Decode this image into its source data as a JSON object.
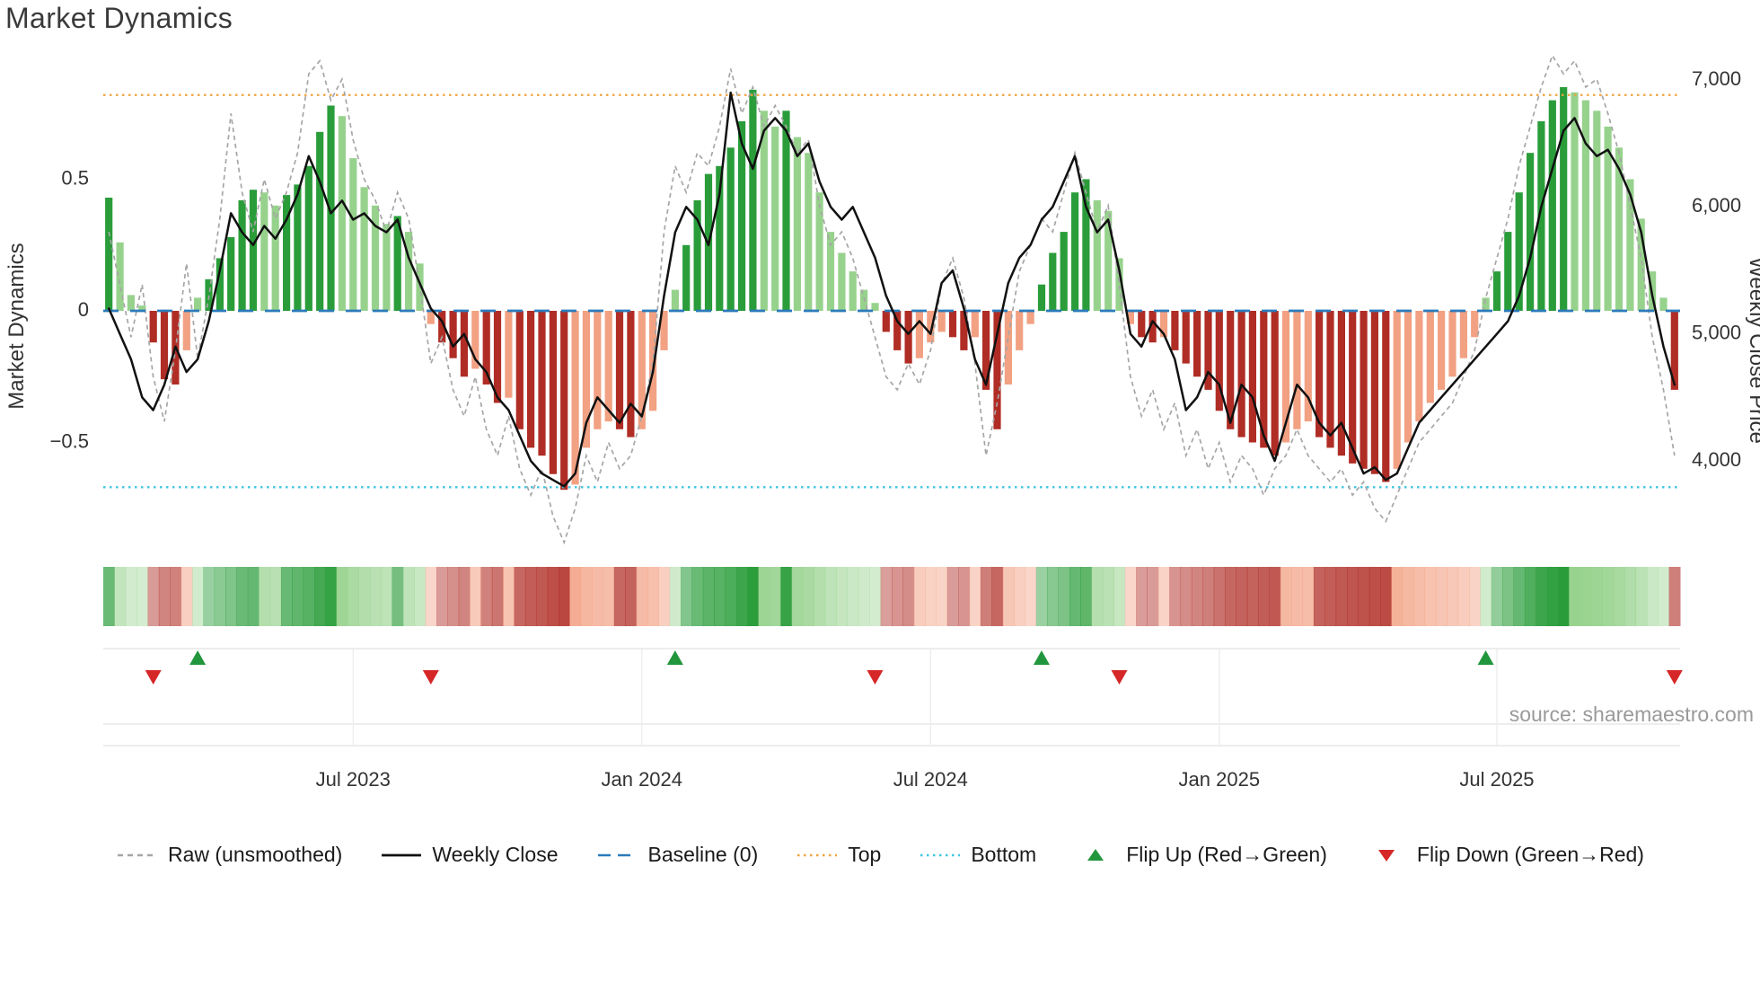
{
  "title": "Market Dynamics",
  "source": "source: sharemaestro.com",
  "axes": {
    "left_label": "Market Dynamics",
    "right_label": "Weekly Close Price",
    "left_tick_labels": [
      "0.5",
      "0",
      "−0.5"
    ],
    "right_tick_labels": [
      "7,000",
      "6,000",
      "5,000",
      "4,000"
    ],
    "x_tick_labels": [
      "Jul 2023",
      "Jan 2024",
      "Jul 2024",
      "Jan 2025",
      "Jul 2025"
    ]
  },
  "colors": {
    "bar_green_dark": "#2a9d3a",
    "bar_green_light": "#97d28d",
    "bar_red_dark": "#b02d25",
    "bar_red_light": "#f2a183",
    "baseline": "#2b7bba",
    "top": "#f0a33f",
    "bottom": "#3fc6e0",
    "raw_line": "#a6a6a6",
    "close_line": "#111111",
    "flip_up": "#22963c",
    "flip_down": "#d62728"
  },
  "legend": {
    "items": [
      {
        "key": "raw",
        "label": "Raw (unsmoothed)",
        "glyph": "dashed-line",
        "color": "#a6a6a6"
      },
      {
        "key": "weekly-close",
        "label": "Weekly Close",
        "glyph": "solid-line",
        "color": "#111111"
      },
      {
        "key": "baseline",
        "label": "Baseline (0)",
        "glyph": "long-dash-line",
        "color": "#2b7bba"
      },
      {
        "key": "top",
        "label": "Top",
        "glyph": "dotted-line",
        "color": "#f0a33f"
      },
      {
        "key": "bottom",
        "label": "Bottom",
        "glyph": "dotted-line",
        "color": "#3fc6e0"
      },
      {
        "key": "flip-up",
        "label": "Flip Up (Red→Green)",
        "glyph": "triangle-up",
        "color": "#22963c"
      },
      {
        "key": "flip-down",
        "label": "Flip Down (Green→Red)",
        "glyph": "triangle-down",
        "color": "#d62728"
      }
    ]
  },
  "chart_data": {
    "type": "bar",
    "title": "Market Dynamics",
    "x_axis": {
      "unit": "week",
      "n_points": 142,
      "tick_labels": [
        "Jul 2023",
        "Jan 2024",
        "Jul 2024",
        "Jan 2025",
        "Jul 2025"
      ],
      "tick_indices": [
        22,
        48,
        74,
        100,
        125
      ]
    },
    "left_axis": {
      "label": "Market Dynamics",
      "range": [
        -0.95,
        0.94
      ],
      "ticks": [
        0.5,
        0,
        -0.5
      ]
    },
    "right_axis": {
      "label": "Weekly Close Price",
      "range": [
        3215,
        7135
      ],
      "ticks": [
        7000,
        6000,
        5000,
        4000
      ]
    },
    "reference_lines": {
      "baseline": 0,
      "top": 0.82,
      "bottom": -0.67
    },
    "flip_markers": {
      "up_indices": [
        8,
        51,
        84,
        124
      ],
      "down_indices": [
        4,
        29,
        69,
        91,
        141
      ]
    },
    "series": [
      {
        "name": "Market Dynamics (bars)",
        "type": "bar",
        "axis": "left",
        "values": [
          0.43,
          0.26,
          0.06,
          0.02,
          -0.12,
          -0.26,
          -0.28,
          -0.15,
          0.05,
          0.12,
          0.2,
          0.28,
          0.42,
          0.46,
          0.45,
          0.4,
          0.44,
          0.48,
          0.55,
          0.68,
          0.78,
          0.74,
          0.58,
          0.47,
          0.4,
          0.33,
          0.36,
          0.3,
          0.18,
          -0.05,
          -0.12,
          -0.18,
          -0.25,
          -0.22,
          -0.28,
          -0.35,
          -0.33,
          -0.45,
          -0.52,
          -0.55,
          -0.62,
          -0.68,
          -0.66,
          -0.52,
          -0.45,
          -0.42,
          -0.45,
          -0.48,
          -0.45,
          -0.38,
          -0.15,
          0.08,
          0.25,
          0.42,
          0.52,
          0.55,
          0.62,
          0.72,
          0.84,
          0.76,
          0.7,
          0.76,
          0.66,
          0.6,
          0.45,
          0.3,
          0.22,
          0.15,
          0.08,
          0.03,
          -0.08,
          -0.15,
          -0.2,
          -0.18,
          -0.12,
          -0.08,
          -0.1,
          -0.15,
          -0.1,
          -0.3,
          -0.45,
          -0.28,
          -0.15,
          -0.05,
          0.1,
          0.22,
          0.3,
          0.45,
          0.5,
          0.42,
          0.38,
          0.2,
          -0.05,
          -0.1,
          -0.12,
          -0.1,
          -0.15,
          -0.2,
          -0.25,
          -0.3,
          -0.38,
          -0.45,
          -0.48,
          -0.5,
          -0.52,
          -0.55,
          -0.5,
          -0.45,
          -0.42,
          -0.48,
          -0.52,
          -0.55,
          -0.58,
          -0.6,
          -0.62,
          -0.65,
          -0.6,
          -0.5,
          -0.42,
          -0.35,
          -0.3,
          -0.25,
          -0.18,
          -0.1,
          0.05,
          0.15,
          0.3,
          0.45,
          0.6,
          0.72,
          0.8,
          0.85,
          0.83,
          0.8,
          0.76,
          0.7,
          0.62,
          0.5,
          0.35,
          0.15,
          0.05,
          -0.3
        ]
      },
      {
        "name": "Raw (unsmoothed)",
        "type": "line",
        "style": "dashed",
        "axis": "left",
        "values": [
          0.3,
          0.1,
          -0.1,
          0.1,
          -0.25,
          -0.42,
          -0.15,
          0.18,
          -0.18,
          0.05,
          0.35,
          0.75,
          0.45,
          0.3,
          0.5,
          0.35,
          0.45,
          0.6,
          0.9,
          0.95,
          0.8,
          0.88,
          0.65,
          0.5,
          0.42,
          0.3,
          0.45,
          0.35,
          0.1,
          -0.2,
          -0.1,
          -0.3,
          -0.4,
          -0.25,
          -0.45,
          -0.55,
          -0.4,
          -0.6,
          -0.7,
          -0.6,
          -0.78,
          -0.88,
          -0.75,
          -0.55,
          -0.65,
          -0.5,
          -0.6,
          -0.55,
          -0.4,
          -0.2,
          0.3,
          0.55,
          0.45,
          0.6,
          0.55,
          0.7,
          0.92,
          0.75,
          0.85,
          0.7,
          0.78,
          0.7,
          0.6,
          0.65,
          0.4,
          0.25,
          0.3,
          0.2,
          0.05,
          -0.1,
          -0.25,
          -0.3,
          -0.2,
          -0.28,
          -0.15,
          0.1,
          0.2,
          0.05,
          -0.2,
          -0.55,
          -0.35,
          -0.1,
          0.15,
          0.25,
          0.35,
          0.3,
          0.45,
          0.6,
          0.45,
          0.3,
          0.4,
          0.1,
          -0.25,
          -0.4,
          -0.3,
          -0.45,
          -0.35,
          -0.55,
          -0.45,
          -0.6,
          -0.5,
          -0.65,
          -0.55,
          -0.6,
          -0.7,
          -0.6,
          -0.55,
          -0.45,
          -0.55,
          -0.6,
          -0.65,
          -0.6,
          -0.7,
          -0.65,
          -0.75,
          -0.8,
          -0.7,
          -0.6,
          -0.5,
          -0.45,
          -0.4,
          -0.35,
          -0.25,
          -0.15,
          0.05,
          0.2,
          0.35,
          0.55,
          0.7,
          0.85,
          0.97,
          0.9,
          0.95,
          0.85,
          0.88,
          0.75,
          0.6,
          0.4,
          0.2,
          -0.1,
          -0.3,
          -0.55
        ]
      },
      {
        "name": "Weekly Close",
        "type": "line",
        "axis": "right",
        "values": [
          5200,
          5000,
          4800,
          4500,
          4400,
          4600,
          4900,
          4700,
          4800,
          5100,
          5500,
          5950,
          5800,
          5700,
          5850,
          5750,
          5900,
          6100,
          6400,
          6200,
          5950,
          6050,
          5900,
          5950,
          5850,
          5800,
          5900,
          5600,
          5400,
          5200,
          5100,
          4900,
          5000,
          4800,
          4700,
          4500,
          4400,
          4200,
          4000,
          3900,
          3850,
          3800,
          3900,
          4300,
          4500,
          4400,
          4300,
          4450,
          4350,
          4700,
          5300,
          5800,
          6000,
          5900,
          5700,
          6100,
          6900,
          6500,
          6300,
          6600,
          6700,
          6600,
          6400,
          6500,
          6200,
          6000,
          5900,
          6000,
          5800,
          5600,
          5300,
          5100,
          5000,
          5100,
          5000,
          5400,
          5500,
          5200,
          4800,
          4600,
          5000,
          5400,
          5600,
          5700,
          5900,
          6000,
          6200,
          6400,
          6000,
          5800,
          5900,
          5500,
          5000,
          4900,
          5100,
          5000,
          4800,
          4400,
          4500,
          4700,
          4600,
          4300,
          4600,
          4500,
          4200,
          4000,
          4300,
          4600,
          4500,
          4300,
          4200,
          4300,
          4100,
          3900,
          3950,
          3850,
          3900,
          4100,
          4300,
          4400,
          4500,
          4600,
          4700,
          4800,
          4900,
          5000,
          5100,
          5300,
          5600,
          6000,
          6300,
          6600,
          6700,
          6500,
          6400,
          6450,
          6300,
          6100,
          5800,
          5300,
          4900,
          4600
        ]
      }
    ],
    "heatmap": {
      "derived_from": "bars",
      "position": "below-main-plot"
    }
  }
}
